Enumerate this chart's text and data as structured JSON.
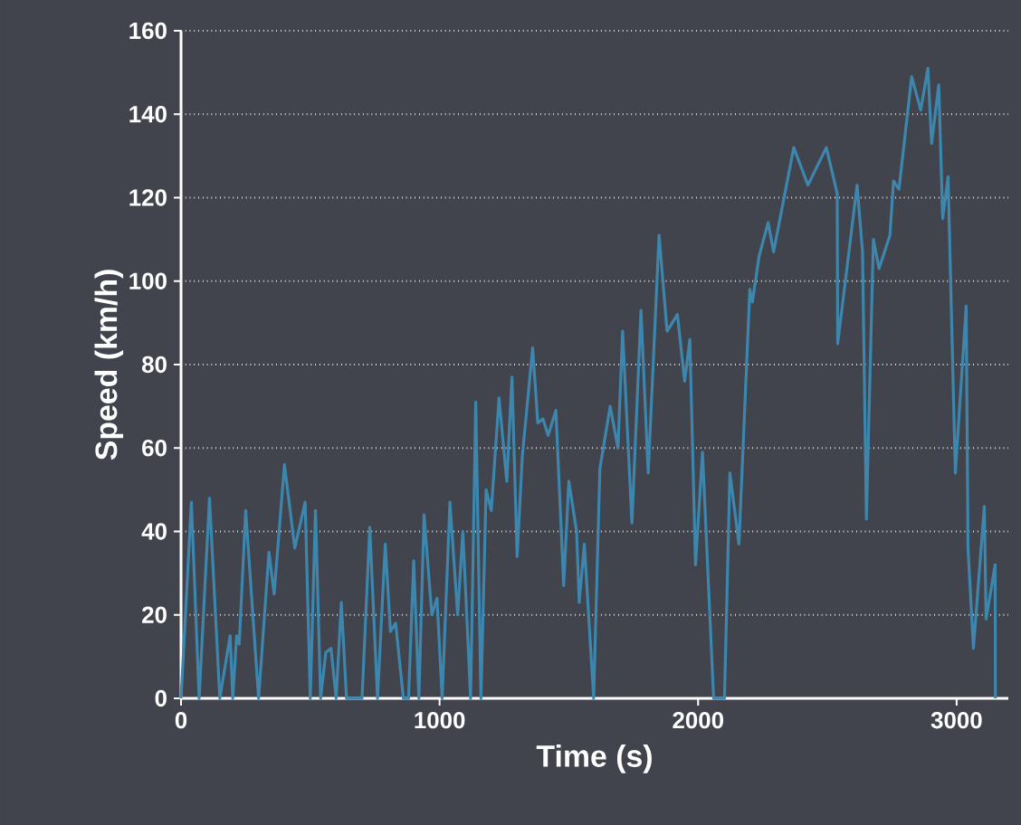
{
  "chart_data": {
    "type": "line",
    "xlabel": "Time (s)",
    "ylabel": "Speed (km/h)",
    "x": [
      0,
      40,
      70,
      110,
      150,
      190,
      200,
      215,
      225,
      250,
      300,
      340,
      360,
      400,
      440,
      480,
      500,
      520,
      540,
      560,
      580,
      600,
      620,
      640,
      700,
      730,
      760,
      790,
      810,
      830,
      860,
      880,
      900,
      920,
      940,
      970,
      990,
      1010,
      1040,
      1070,
      1090,
      1120,
      1140,
      1160,
      1180,
      1200,
      1230,
      1260,
      1280,
      1300,
      1320,
      1360,
      1380,
      1400,
      1420,
      1450,
      1480,
      1500,
      1530,
      1540,
      1560,
      1596,
      1620,
      1660,
      1690,
      1708,
      1744,
      1779,
      1807,
      1849,
      1880,
      1920,
      1948,
      1968,
      1990,
      2017,
      2060,
      2102,
      2123,
      2158,
      2200,
      2210,
      2236,
      2271,
      2292,
      2370,
      2425,
      2496,
      2538,
      2540,
      2615,
      2636,
      2651,
      2678,
      2700,
      2742,
      2756,
      2777,
      2826,
      2861,
      2889,
      2903,
      2931,
      2946,
      2967,
      2995,
      3037,
      3044,
      3065,
      3107,
      3114,
      3149,
      3150
    ],
    "series": [
      {
        "color": "#3d87ae",
        "values": [
          0,
          47,
          0,
          48,
          0,
          15,
          0,
          15,
          13,
          45,
          0,
          35,
          25,
          56,
          36,
          47,
          0,
          45,
          0,
          11,
          12,
          0,
          23,
          0,
          0,
          41,
          0,
          37,
          16,
          18,
          0,
          0,
          33,
          0,
          44,
          20,
          24,
          0,
          47,
          20,
          40,
          0,
          71,
          0,
          50,
          45,
          72,
          52,
          77,
          34,
          58,
          84,
          66,
          67,
          63,
          69,
          27,
          52,
          40,
          23,
          37,
          0,
          55,
          70,
          60,
          88,
          42,
          93,
          54,
          111,
          88,
          92,
          76,
          86,
          32,
          59,
          0,
          0,
          54,
          37,
          98,
          95,
          106,
          114,
          107,
          132,
          123,
          132,
          121,
          85,
          123,
          107,
          43,
          110,
          103,
          111,
          124,
          122,
          149,
          141,
          151,
          133,
          147,
          115,
          125,
          54,
          94,
          36,
          12,
          46,
          19,
          32,
          0
        ]
      }
    ],
    "xlim": [
      0,
      3200
    ],
    "ylim": [
      0,
      160
    ],
    "xticks": [
      0,
      1000,
      2000,
      3000
    ],
    "yticks": [
      0,
      20,
      40,
      60,
      80,
      100,
      120,
      140,
      160
    ],
    "grid": "y",
    "line_style": "solid",
    "marker": "none"
  }
}
